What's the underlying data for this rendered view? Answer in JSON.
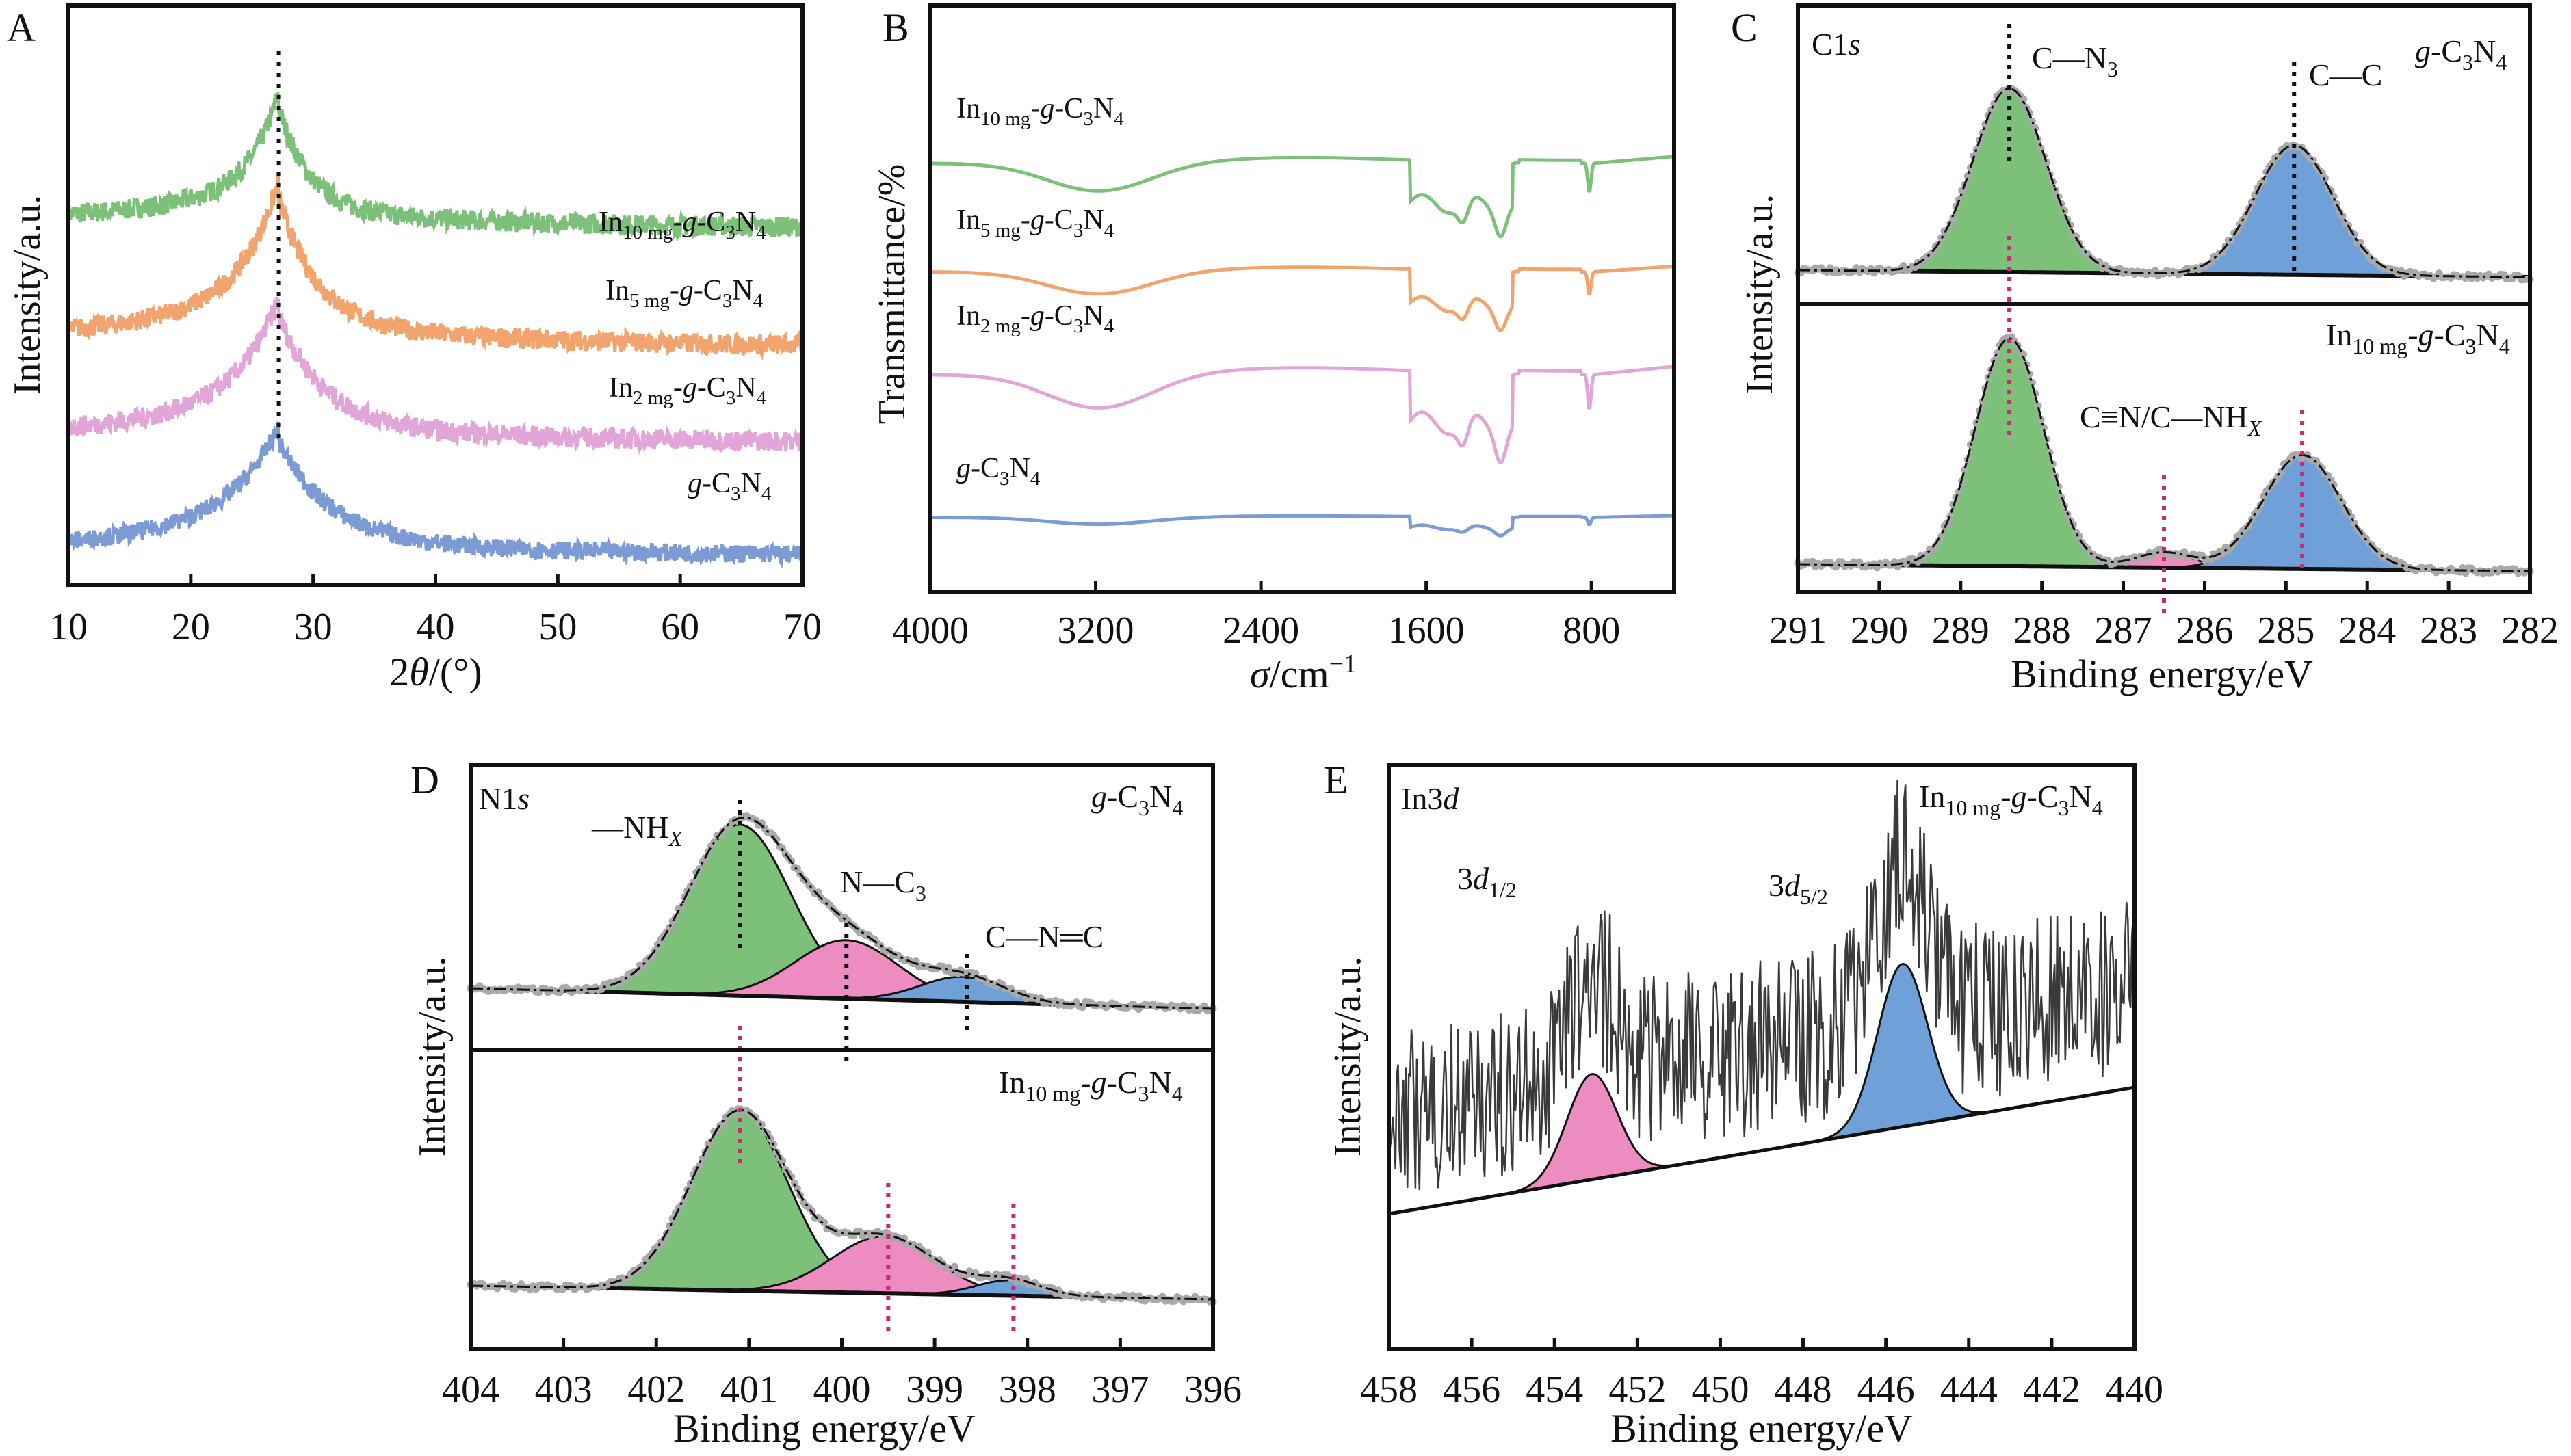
{
  "chart_data": [
    {
      "panel": "A",
      "type": "line",
      "xlabel": "2θ/(°)",
      "ylabel": "Intensity/a.u.",
      "xlim": [
        10,
        70
      ],
      "xticks": [
        10,
        20,
        30,
        40,
        50,
        60,
        70
      ],
      "peak_marker": 27.2,
      "series": [
        {
          "name": "In10 mg-g-C3N4",
          "label_parts": [
            "In",
            "10 mg",
            "-g-C",
            "3",
            "N",
            "4"
          ],
          "color": "#7cc07a",
          "baseline": 0.7,
          "peak": 27.2,
          "amp": 0.18,
          "decay": 0.4,
          "noise": 0.018
        },
        {
          "name": "In5 mg-g-C3N4",
          "label_parts": [
            "In",
            "5 mg",
            "-g-C",
            "3",
            "N",
            "4"
          ],
          "color": "#f2a46e",
          "baseline": 0.49,
          "peak": 27.2,
          "amp": 0.22,
          "decay": 0.32,
          "noise": 0.018
        },
        {
          "name": "In2 mg-g-C3N4",
          "label_parts": [
            "In",
            "2 mg",
            "-g-C",
            "3",
            "N",
            "4"
          ],
          "color": "#e2a5d8",
          "baseline": 0.32,
          "peak": 27.2,
          "amp": 0.19,
          "decay": 0.28,
          "noise": 0.018
        },
        {
          "name": "g-C3N4",
          "label_parts": [
            "",
            "",
            "g-C",
            "3",
            "N",
            "4"
          ],
          "color": "#7c9ad4",
          "baseline": 0.12,
          "peak": 27.2,
          "amp": 0.17,
          "decay": 0.24,
          "noise": 0.016
        }
      ]
    },
    {
      "panel": "B",
      "type": "line",
      "xlabel": "σ/cm⁻¹",
      "ylabel": "Transmittance/%",
      "xlim": [
        4000,
        400
      ],
      "xticks": [
        4000,
        3200,
        2400,
        1600,
        800
      ],
      "series": [
        {
          "name": "In10 mg-g-C3N4",
          "label_parts": [
            "In",
            "10 mg",
            "-g-C",
            "3",
            "N",
            "4"
          ],
          "color": "#7cc07a",
          "offset": 0.75,
          "scale": 1.0
        },
        {
          "name": "In5 mg-g-C3N4",
          "label_parts": [
            "In",
            "5 mg",
            "-g-C",
            "3",
            "N",
            "4"
          ],
          "color": "#f2a46e",
          "offset": 0.56,
          "scale": 0.8
        },
        {
          "name": "In2 mg-g-C3N4",
          "label_parts": [
            "In",
            "2 mg",
            "-g-C",
            "3",
            "N",
            "4"
          ],
          "color": "#e2a5d8",
          "offset": 0.38,
          "scale": 1.2
        },
        {
          "name": "g-C3N4",
          "label_parts": [
            "",
            "",
            "g-C",
            "3",
            "N",
            "4"
          ],
          "color": "#7c9ad4",
          "offset": 0.13,
          "scale": 0.25
        }
      ]
    },
    {
      "panel": "C",
      "type": "area",
      "core_level": "C1s",
      "xlabel": "Binding energy/eV",
      "ylabel": "Intensity/a.u.",
      "xlim": [
        291,
        282
      ],
      "xticks": [
        291,
        290,
        289,
        288,
        287,
        286,
        285,
        284,
        283,
        282
      ],
      "subpanels": [
        {
          "sample": "g-C3N4",
          "peaks": [
            {
              "name": "C—N3",
              "center": 288.4,
              "height": 0.88,
              "width": 0.45,
              "color": "#7cc07a"
            },
            {
              "name": "C—C",
              "center": 284.9,
              "height": 0.62,
              "width": 0.48,
              "color": "#6fa0d8"
            }
          ]
        },
        {
          "sample": "In10 mg-g-C3N4",
          "peaks": [
            {
              "name": "C—N3",
              "center": 288.4,
              "height": 0.9,
              "width": 0.42,
              "color": "#7cc07a"
            },
            {
              "name": "C≡N/C—NHX",
              "center": 286.5,
              "height": 0.06,
              "width": 0.35,
              "color": "#ec8cc0"
            },
            {
              "name": "C—C",
              "center": 284.8,
              "height": 0.45,
              "width": 0.48,
              "color": "#6fa0d8"
            }
          ]
        }
      ],
      "annotations": [
        "C1s",
        "C—N3",
        "C—C",
        "g-C3N4",
        "In10 mg-g-C3N4",
        "C≡N/C—NHX"
      ],
      "markers_top": [
        288.4,
        284.9
      ],
      "markers_bottom": [
        288.4,
        286.5,
        284.8
      ]
    },
    {
      "panel": "D",
      "type": "area",
      "core_level": "N1s",
      "xlabel": "Binding energy/eV",
      "ylabel": "Intensity/a.u.",
      "xlim": [
        404,
        396
      ],
      "xticks": [
        404,
        403,
        402,
        401,
        400,
        399,
        398,
        397,
        396
      ],
      "subpanels": [
        {
          "sample": "g-C3N4",
          "peaks": [
            {
              "name": "—NHX",
              "center": 401.1,
              "height": 0.82,
              "width": 0.55,
              "color": "#7cc07a"
            },
            {
              "name": "N—C3",
              "center": 399.95,
              "height": 0.28,
              "width": 0.55,
              "color": "#ec8cc0"
            },
            {
              "name": "C—N=C",
              "center": 398.7,
              "height": 0.12,
              "width": 0.45,
              "color": "#6fa0d8"
            }
          ]
        },
        {
          "sample": "In10 mg-g-C3N4",
          "peaks": [
            {
              "name": "—NHX",
              "center": 401.1,
              "height": 0.82,
              "width": 0.52,
              "color": "#7cc07a"
            },
            {
              "name": "N—C3",
              "center": 399.55,
              "height": 0.26,
              "width": 0.55,
              "color": "#ec8cc0"
            },
            {
              "name": "C—N=C",
              "center": 398.2,
              "height": 0.07,
              "width": 0.35,
              "color": "#6fa0d8"
            }
          ]
        }
      ],
      "annotations": [
        "N1s",
        "—NHX",
        "N—C3",
        "C—N=C",
        "g-C3N4",
        "In10 mg-g-C3N4"
      ],
      "markers_top": [
        401.1,
        399.95,
        398.65
      ],
      "markers_bottom": [
        401.1,
        399.5,
        398.15
      ]
    },
    {
      "panel": "E",
      "type": "area",
      "core_level": "In3d",
      "xlabel": "Binding energy/eV",
      "ylabel": "Intensity/a.u.",
      "xlim": [
        458,
        440
      ],
      "xticks": [
        458,
        456,
        454,
        452,
        450,
        448,
        446,
        444,
        442,
        440
      ],
      "sample": "In10 mg-g-C3N4",
      "peaks": [
        {
          "name": "3d1/2",
          "center": 453.1,
          "height": 0.22,
          "width": 0.6,
          "color": "#ec8cc0"
        },
        {
          "name": "3d5/2",
          "center": 445.6,
          "height": 0.34,
          "width": 0.6,
          "color": "#6fa0d8"
        }
      ],
      "annotations": [
        "In3d",
        "3d1/2",
        "3d5/2",
        "In10 mg-g-C3N4"
      ]
    }
  ],
  "labels": {
    "panel_a": "A",
    "panel_b": "B",
    "panel_c": "C",
    "panel_d": "D",
    "panel_e": "E",
    "a_xlabel_theta": "θ",
    "a_xlabel_pre": "2",
    "a_xlabel_post": "/(°)",
    "a_ylabel": "Intensity/a.u.",
    "b_xlabel_sigma": "σ",
    "b_xlabel_post": "/cm",
    "b_xlabel_sup": "−1",
    "b_ylabel": "Transmittance/%",
    "be_xlabel": "Binding energy/eV",
    "int_ylabel": "Intensity/a.u.",
    "c_core": "C1",
    "c_core_s": "s",
    "c_cn3_a": "C—N",
    "c_cn3_sub": "3",
    "c_cc": "C—C",
    "c_cn_a": "C≡N/C—NH",
    "c_cn_sub": "X",
    "d_core": "N1",
    "d_core_s": "s",
    "d_nh_a": "—NH",
    "d_nh_sub": "X",
    "d_nc3_a": "N—C",
    "d_nc3_sub": "3",
    "d_cnc": "C—N═C",
    "e_core": "In3",
    "e_core_d": "d",
    "e_p1_pre": "3",
    "e_p1_d": "d",
    "e_p1_sub": "1/2",
    "e_p2_pre": "3",
    "e_p2_d": "d",
    "e_p2_sub": "5/2",
    "g_prefix": "g",
    "g_rest": "-C",
    "g_sub3": "3",
    "g_n": "N",
    "g_sub4": "4",
    "in_prefix": "In",
    "in_sub": "10 mg",
    "in_dash": "-"
  }
}
